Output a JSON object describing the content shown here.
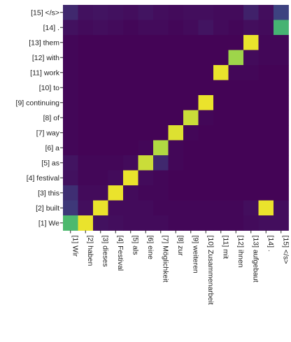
{
  "chart_data": {
    "type": "heatmap",
    "title": "",
    "xlabel": "",
    "ylabel": "",
    "x_labels": [
      "[1] Wir",
      "[2] haben",
      "[3] dieses",
      "[4] Festival",
      "[5] als",
      "[6] eine",
      "[7] Möglichkeit",
      "[8] zur",
      "[9] weiteren",
      "[10] Zusammenarbeit",
      "[11] mit",
      "[12] ihnen",
      "[13] aufgebaut",
      "[14] .",
      "[15] </s>"
    ],
    "y_labels": [
      "[15] </s>",
      "[14] .",
      "[13] them",
      "[12] with",
      "[11] work",
      "[10] to",
      "[9] continuing",
      "[8] of",
      "[7] way",
      "[6] a",
      "[5] as",
      "[4] festival",
      "[3] this",
      "[2] built",
      "[1] We"
    ],
    "value_range": [
      0,
      1
    ],
    "colormap": "viridis",
    "values": [
      [
        0.12,
        0.05,
        0.06,
        0.05,
        0.04,
        0.06,
        0.04,
        0.03,
        0.04,
        0.04,
        0.03,
        0.03,
        0.1,
        0.04,
        0.2
      ],
      [
        0.05,
        0.03,
        0.04,
        0.03,
        0.02,
        0.03,
        0.03,
        0.02,
        0.03,
        0.06,
        0.03,
        0.02,
        0.04,
        0.03,
        0.65
      ],
      [
        0.02,
        0.01,
        0.01,
        0.01,
        0.01,
        0.01,
        0.01,
        0.01,
        0.01,
        0.01,
        0.01,
        0.01,
        0.97,
        0.02,
        0.02
      ],
      [
        0.02,
        0.01,
        0.01,
        0.01,
        0.01,
        0.01,
        0.01,
        0.01,
        0.01,
        0.01,
        0.01,
        0.85,
        0.03,
        0.02,
        0.02
      ],
      [
        0.02,
        0.01,
        0.01,
        0.01,
        0.01,
        0.01,
        0.01,
        0.01,
        0.01,
        0.01,
        0.97,
        0.02,
        0.02,
        0.01,
        0.01
      ],
      [
        0.02,
        0.01,
        0.01,
        0.01,
        0.01,
        0.01,
        0.01,
        0.01,
        0.01,
        0.01,
        0.01,
        0.01,
        0.01,
        0.01,
        0.01
      ],
      [
        0.02,
        0.01,
        0.01,
        0.01,
        0.01,
        0.01,
        0.01,
        0.01,
        0.01,
        0.97,
        0.01,
        0.01,
        0.01,
        0.01,
        0.01
      ],
      [
        0.02,
        0.01,
        0.01,
        0.01,
        0.01,
        0.01,
        0.01,
        0.01,
        0.92,
        0.02,
        0.01,
        0.01,
        0.01,
        0.01,
        0.01
      ],
      [
        0.02,
        0.01,
        0.01,
        0.01,
        0.01,
        0.01,
        0.01,
        0.95,
        0.02,
        0.01,
        0.01,
        0.01,
        0.01,
        0.01,
        0.01
      ],
      [
        0.02,
        0.01,
        0.01,
        0.01,
        0.01,
        0.02,
        0.88,
        0.02,
        0.01,
        0.01,
        0.01,
        0.01,
        0.01,
        0.01,
        0.01
      ],
      [
        0.06,
        0.02,
        0.02,
        0.02,
        0.03,
        0.92,
        0.12,
        0.02,
        0.01,
        0.01,
        0.01,
        0.01,
        0.01,
        0.01,
        0.01
      ],
      [
        0.05,
        0.02,
        0.02,
        0.03,
        0.97,
        0.03,
        0.02,
        0.01,
        0.01,
        0.01,
        0.01,
        0.01,
        0.01,
        0.01,
        0.01
      ],
      [
        0.14,
        0.03,
        0.03,
        0.97,
        0.03,
        0.02,
        0.02,
        0.01,
        0.01,
        0.01,
        0.01,
        0.01,
        0.01,
        0.01,
        0.01
      ],
      [
        0.17,
        0.04,
        0.97,
        0.03,
        0.03,
        0.03,
        0.02,
        0.02,
        0.02,
        0.02,
        0.02,
        0.02,
        0.04,
        0.97,
        0.04
      ],
      [
        0.68,
        0.97,
        0.05,
        0.04,
        0.03,
        0.03,
        0.03,
        0.02,
        0.02,
        0.02,
        0.02,
        0.02,
        0.03,
        0.04,
        0.04
      ]
    ]
  }
}
